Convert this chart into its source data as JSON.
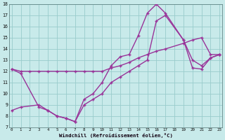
{
  "bg_color": "#c8eaea",
  "grid_color": "#99cccc",
  "line_color": "#993399",
  "xlabel": "Windchill (Refroidissement éolien,°C)",
  "xlim": [
    0,
    23
  ],
  "ylim": [
    7,
    18
  ],
  "yticks": [
    7,
    8,
    9,
    10,
    11,
    12,
    13,
    14,
    15,
    16,
    17,
    18
  ],
  "xticks": [
    0,
    1,
    2,
    3,
    4,
    5,
    6,
    7,
    8,
    9,
    10,
    11,
    12,
    13,
    14,
    15,
    16,
    17,
    18,
    19,
    20,
    21,
    22,
    23
  ],
  "line1_x": [
    0,
    1,
    2,
    3,
    4,
    5,
    6,
    7,
    8,
    9,
    10,
    11,
    12,
    13,
    14,
    15,
    16,
    17,
    19,
    20,
    21,
    22,
    23
  ],
  "line1_y": [
    12.2,
    12.0,
    12.0,
    12.0,
    12.0,
    12.0,
    12.0,
    12.0,
    12.0,
    12.0,
    12.0,
    12.3,
    12.5,
    12.8,
    13.2,
    13.5,
    13.8,
    14.0,
    14.5,
    14.8,
    15.0,
    13.5,
    13.5
  ],
  "line2_x": [
    0,
    1,
    3,
    4,
    5,
    6,
    7,
    8,
    9,
    10,
    11,
    12,
    13,
    14,
    15,
    16,
    17,
    19,
    20,
    21,
    22,
    23
  ],
  "line2_y": [
    12.2,
    11.8,
    8.8,
    8.5,
    8.0,
    7.8,
    7.5,
    9.5,
    10.0,
    11.0,
    12.5,
    13.3,
    13.5,
    15.2,
    17.2,
    18.0,
    17.2,
    14.8,
    13.0,
    12.5,
    13.2,
    13.5
  ],
  "line3_x": [
    0,
    1,
    3,
    4,
    5,
    6,
    7,
    8,
    9,
    10,
    11,
    12,
    13,
    14,
    15,
    16,
    17,
    19,
    20,
    21,
    22,
    23
  ],
  "line3_y": [
    8.5,
    8.8,
    9.0,
    8.5,
    8.0,
    7.8,
    7.5,
    9.0,
    9.5,
    10.0,
    11.0,
    11.5,
    12.0,
    12.5,
    13.0,
    16.5,
    17.0,
    14.8,
    12.3,
    12.2,
    13.2,
    13.5
  ]
}
